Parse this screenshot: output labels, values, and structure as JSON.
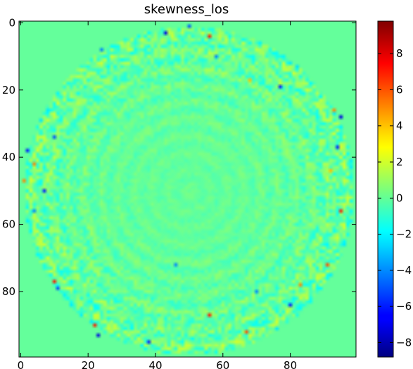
{
  "chart_data": {
    "type": "heatmap",
    "title": "skewness_los",
    "xlabel": "",
    "ylabel": "",
    "grid_shape": [
      100,
      100
    ],
    "x_ticks": [
      0,
      20,
      40,
      60,
      80
    ],
    "x_tick_labels": [
      "0",
      "20",
      "40",
      "60",
      "80"
    ],
    "y_ticks": [
      0,
      20,
      40,
      60,
      80
    ],
    "y_tick_labels": [
      "0",
      "20",
      "40",
      "60",
      "80"
    ],
    "y_axis_inverted": true,
    "colormap": "jet",
    "vmin": -8.8,
    "vmax": 9.8,
    "colorbar_ticks": [
      8,
      6,
      4,
      2,
      0,
      -2,
      -4,
      -6,
      -8
    ],
    "colorbar_tick_labels": [
      "8",
      "6",
      "4",
      "2",
      "0",
      "−2",
      "−4",
      "−6",
      "−8"
    ],
    "background_value": 0,
    "description_values": {
      "center_x": 50,
      "center_y": 50,
      "inner_noise_radius": 40,
      "outer_data_radius": 49
    },
    "extreme_points": [
      {
        "x": 56,
        "y": 4,
        "value": 7
      },
      {
        "x": 43,
        "y": 3,
        "value": -7
      },
      {
        "x": 50,
        "y": 1,
        "value": -5
      },
      {
        "x": 24,
        "y": 8,
        "value": -4
      },
      {
        "x": 68,
        "y": 17,
        "value": 4
      },
      {
        "x": 77,
        "y": 19,
        "value": -6
      },
      {
        "x": 93,
        "y": 26,
        "value": 5
      },
      {
        "x": 95,
        "y": 28,
        "value": -7
      },
      {
        "x": 94,
        "y": 37,
        "value": -6
      },
      {
        "x": 92,
        "y": 44,
        "value": 4
      },
      {
        "x": 95,
        "y": 56,
        "value": 7
      },
      {
        "x": 91,
        "y": 72,
        "value": 6
      },
      {
        "x": 83,
        "y": 78,
        "value": 5
      },
      {
        "x": 80,
        "y": 84,
        "value": -6
      },
      {
        "x": 56,
        "y": 87,
        "value": 7
      },
      {
        "x": 67,
        "y": 92,
        "value": 6
      },
      {
        "x": 23,
        "y": 93,
        "value": -7
      },
      {
        "x": 22,
        "y": 90,
        "value": 7
      },
      {
        "x": 10,
        "y": 77,
        "value": 7
      },
      {
        "x": 11,
        "y": 79,
        "value": -5
      },
      {
        "x": 4,
        "y": 42,
        "value": 5
      },
      {
        "x": 2,
        "y": 38,
        "value": -6
      },
      {
        "x": 1,
        "y": 47,
        "value": 5
      },
      {
        "x": 7,
        "y": 50,
        "value": -6
      },
      {
        "x": 4,
        "y": 56,
        "value": -4
      },
      {
        "x": 10,
        "y": 34,
        "value": -5
      },
      {
        "x": 38,
        "y": 95,
        "value": -6
      },
      {
        "x": 70,
        "y": 80,
        "value": -4
      },
      {
        "x": 46,
        "y": 72,
        "value": -4
      },
      {
        "x": 58,
        "y": 10,
        "value": -4
      }
    ]
  }
}
